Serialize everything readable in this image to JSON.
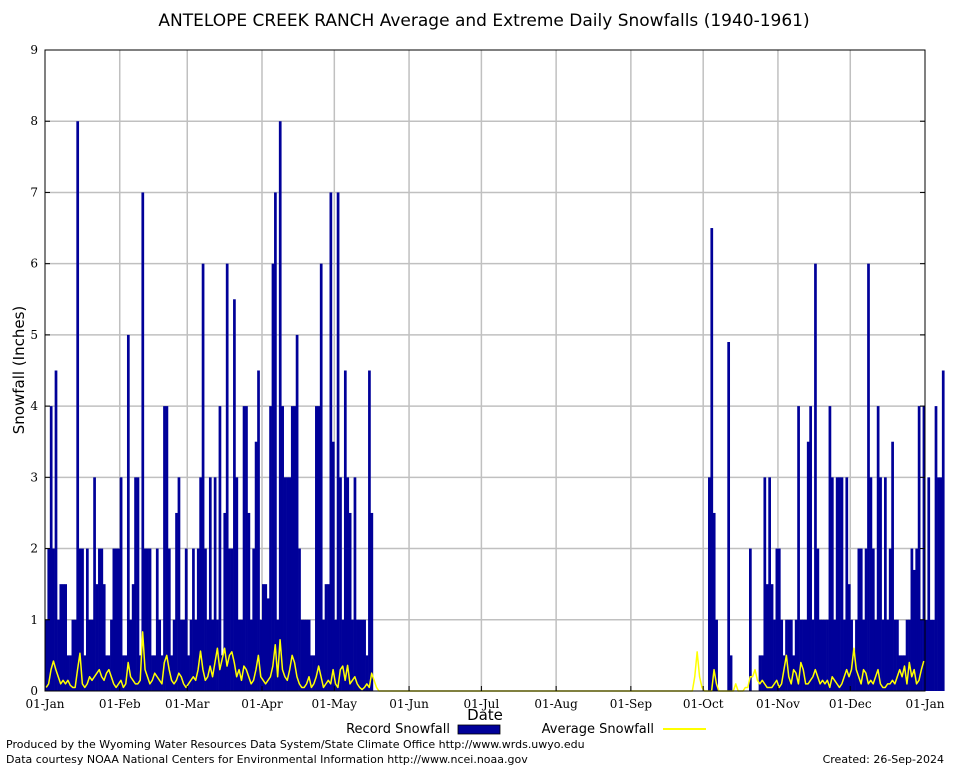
{
  "chart_data": {
    "type": "bar",
    "title": "ANTELOPE CREEK RANCH Average and Extreme Daily Snowfalls (1940-1961)",
    "xlabel": "Date",
    "ylabel": "Snowfall (Inches)",
    "ylim": [
      0,
      9
    ],
    "yticks": [
      "0",
      "1",
      "2",
      "3",
      "4",
      "5",
      "6",
      "7",
      "8",
      "9"
    ],
    "xticks": [
      "01-Jan",
      "01-Feb",
      "01-Mar",
      "01-Apr",
      "01-May",
      "01-Jun",
      "01-Jul",
      "01-Aug",
      "01-Sep",
      "01-Oct",
      "01-Nov",
      "01-Dec",
      "01-Jan"
    ],
    "xtick_days": [
      0,
      31,
      59,
      90,
      120,
      151,
      181,
      212,
      243,
      273,
      304,
      334,
      365
    ],
    "grid": true,
    "legend_position": "bottom",
    "colors": {
      "record": "#000099",
      "average": "#ffff00",
      "grid": "#c0c0c0"
    },
    "series": [
      {
        "name": "Record Snowfall",
        "kind": "bar",
        "values": [
          1,
          2,
          4,
          2,
          4.5,
          1,
          1.5,
          1.5,
          1.5,
          0.5,
          0.5,
          1,
          1,
          8,
          2,
          2,
          0.5,
          2,
          1,
          1,
          3,
          1.5,
          2,
          2,
          1.5,
          0.5,
          0.5,
          1,
          2,
          2,
          2,
          3,
          0.5,
          0.5,
          5,
          1,
          1.5,
          3,
          3,
          0.5,
          7,
          2,
          2,
          2,
          0.5,
          0.5,
          2,
          1,
          0.5,
          4,
          4,
          2,
          0.5,
          1,
          2.5,
          3,
          1,
          1,
          2,
          0.5,
          1,
          2,
          1,
          2,
          3,
          6,
          2,
          1,
          3,
          1,
          3,
          1,
          4,
          0.5,
          2.5,
          6,
          2,
          2,
          5.5,
          3,
          1,
          1,
          4,
          4,
          2.5,
          1,
          2,
          3.5,
          4.5,
          1,
          1.5,
          1.5,
          1.3,
          4,
          6,
          7,
          1,
          8,
          4,
          3,
          3,
          3,
          4,
          4,
          5,
          2,
          1,
          1,
          1,
          1,
          0.5,
          0.5,
          4,
          4,
          6,
          1,
          1.5,
          1.5,
          7,
          3.5,
          1,
          7,
          3,
          1,
          4.5,
          3,
          2.5,
          1,
          3,
          1,
          1,
          1,
          1,
          0.5,
          4.5,
          2.5,
          0,
          0,
          0,
          0,
          0,
          0,
          0,
          0,
          0,
          0,
          0,
          0,
          0,
          0,
          0,
          0,
          0,
          0,
          0,
          0,
          0,
          0,
          0,
          0,
          0,
          0,
          0,
          0,
          0,
          0,
          0,
          0,
          0,
          0,
          0,
          0,
          0,
          0,
          0,
          0,
          0,
          0,
          0,
          0,
          0,
          0,
          0,
          0,
          0,
          0,
          0,
          0,
          0,
          0,
          0,
          0,
          0,
          0,
          0,
          0,
          0,
          0,
          0,
          0,
          0,
          0,
          0,
          0,
          0,
          0,
          0,
          0,
          0,
          0,
          0,
          0,
          0,
          0,
          0,
          0,
          0,
          0,
          0,
          0,
          0,
          0,
          0,
          0,
          0,
          0,
          0,
          0,
          0,
          0,
          0,
          0,
          0,
          0,
          0,
          0,
          0,
          0,
          0,
          0,
          0,
          0,
          0,
          0,
          0,
          0,
          0,
          0,
          0,
          0,
          0,
          0,
          0,
          0,
          0,
          0,
          0,
          0,
          0,
          0,
          0,
          0,
          0,
          0,
          0,
          0,
          0,
          0,
          0,
          0,
          0,
          0,
          0,
          0,
          0,
          3,
          6.5,
          2.5,
          1,
          0,
          0,
          0,
          0,
          4.9,
          0.5,
          0,
          0,
          0,
          0,
          0,
          0,
          0,
          2,
          0,
          0,
          0,
          0.5,
          0.5,
          3,
          1.5,
          3,
          1.5,
          1,
          2,
          2,
          1,
          0.5,
          1,
          1,
          1,
          0.5,
          1,
          4,
          1,
          1,
          1,
          3.5,
          4,
          1,
          6,
          2,
          1,
          1,
          1,
          1,
          4,
          3,
          1,
          3,
          3,
          3,
          1,
          3,
          1.5,
          1,
          0.5,
          1,
          2,
          2,
          1,
          2,
          6,
          3,
          2,
          1,
          4,
          3,
          1,
          3,
          1,
          2,
          3.5,
          1,
          1,
          0.5,
          0.5,
          0.5,
          1,
          1,
          2,
          1.7,
          2,
          4,
          1,
          4,
          1,
          3,
          1,
          1,
          4,
          3,
          3,
          4.5
        ]
      },
      {
        "name": "Average Snowfall",
        "kind": "line",
        "values": [
          0.05,
          0.1,
          0.3,
          0.42,
          0.3,
          0.2,
          0.1,
          0.15,
          0.1,
          0.15,
          0.08,
          0.05,
          0.05,
          0.3,
          0.53,
          0.1,
          0.05,
          0.1,
          0.2,
          0.15,
          0.2,
          0.25,
          0.3,
          0.2,
          0.15,
          0.25,
          0.3,
          0.2,
          0.1,
          0.05,
          0.1,
          0.15,
          0.05,
          0.1,
          0.4,
          0.2,
          0.15,
          0.1,
          0.1,
          0.15,
          0.83,
          0.3,
          0.2,
          0.1,
          0.15,
          0.25,
          0.2,
          0.15,
          0.1,
          0.4,
          0.5,
          0.3,
          0.15,
          0.1,
          0.15,
          0.25,
          0.2,
          0.1,
          0.05,
          0.1,
          0.15,
          0.2,
          0.15,
          0.3,
          0.56,
          0.3,
          0.15,
          0.2,
          0.35,
          0.2,
          0.4,
          0.6,
          0.3,
          0.45,
          0.6,
          0.35,
          0.5,
          0.55,
          0.4,
          0.2,
          0.3,
          0.15,
          0.35,
          0.3,
          0.2,
          0.1,
          0.15,
          0.3,
          0.5,
          0.2,
          0.15,
          0.1,
          0.15,
          0.2,
          0.35,
          0.65,
          0.2,
          0.72,
          0.3,
          0.2,
          0.15,
          0.3,
          0.5,
          0.4,
          0.2,
          0.1,
          0.05,
          0.05,
          0.1,
          0.2,
          0.05,
          0.1,
          0.2,
          0.35,
          0.2,
          0.05,
          0.1,
          0.15,
          0.1,
          0.3,
          0.1,
          0.05,
          0.3,
          0.35,
          0.15,
          0.36,
          0.1,
          0.15,
          0.2,
          0.1,
          0.05,
          0.02,
          0.05,
          0.1,
          0.05,
          0.25,
          0.15,
          0.05,
          0,
          0,
          0,
          0,
          0,
          0,
          0,
          0,
          0,
          0,
          0,
          0,
          0,
          0,
          0,
          0,
          0,
          0,
          0,
          0,
          0,
          0,
          0,
          0,
          0,
          0,
          0,
          0,
          0,
          0,
          0,
          0,
          0,
          0,
          0,
          0,
          0,
          0,
          0,
          0,
          0,
          0,
          0,
          0,
          0,
          0,
          0,
          0,
          0,
          0,
          0,
          0,
          0,
          0,
          0,
          0,
          0,
          0,
          0,
          0,
          0,
          0,
          0,
          0,
          0,
          0,
          0,
          0,
          0,
          0,
          0,
          0,
          0,
          0,
          0,
          0,
          0,
          0,
          0,
          0,
          0,
          0,
          0,
          0,
          0,
          0,
          0,
          0,
          0,
          0,
          0,
          0,
          0,
          0,
          0,
          0,
          0,
          0,
          0,
          0,
          0,
          0,
          0,
          0,
          0,
          0,
          0,
          0,
          0,
          0,
          0,
          0,
          0,
          0,
          0,
          0,
          0,
          0,
          0,
          0,
          0,
          0,
          0,
          0,
          0,
          0,
          0,
          0,
          0,
          0,
          0,
          0.2,
          0.55,
          0.2,
          0.05,
          0,
          0,
          0,
          0,
          0.3,
          0.1,
          0,
          0,
          0,
          0,
          0,
          0,
          0,
          0.1,
          0,
          0,
          0,
          0.05,
          0.05,
          0.2,
          0.2,
          0.3,
          0.15,
          0.1,
          0.15,
          0.1,
          0.05,
          0.05,
          0.05,
          0.1,
          0.15,
          0.05,
          0.1,
          0.3,
          0.5,
          0.2,
          0.1,
          0.3,
          0.25,
          0.1,
          0.4,
          0.3,
          0.1,
          0.1,
          0.15,
          0.2,
          0.3,
          0.2,
          0.1,
          0.15,
          0.1,
          0.15,
          0.05,
          0.2,
          0.15,
          0.1,
          0.05,
          0.1,
          0.2,
          0.3,
          0.2,
          0.3,
          0.6,
          0.3,
          0.2,
          0.1,
          0.3,
          0.25,
          0.1,
          0.15,
          0.1,
          0.2,
          0.3,
          0.1,
          0.05,
          0.05,
          0.1,
          0.1,
          0.15,
          0.1,
          0.2,
          0.3,
          0.2,
          0.35,
          0.1,
          0.4,
          0.2,
          0.3,
          0.1,
          0.15,
          0.3,
          0.42
        ]
      }
    ]
  },
  "legend": {
    "record_label": "Record Snowfall",
    "average_label": "Average Snowfall"
  },
  "footer": {
    "line1": "Produced by the Wyoming Water Resources Data System/State Climate Office http://www.wrds.uwyo.edu",
    "line2": "Data courtesy NOAA National Centers for Environmental Information http://www.ncei.noaa.gov",
    "created": "Created:  26-Sep-2024"
  }
}
